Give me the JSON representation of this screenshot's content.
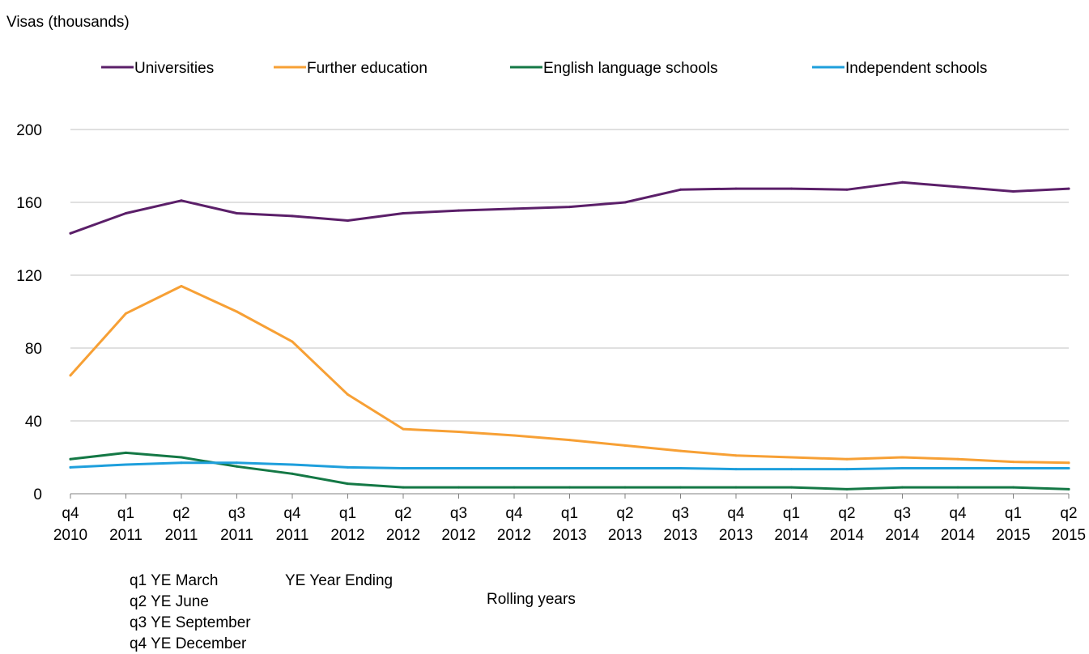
{
  "chart_data": {
    "type": "line",
    "ylabel": "Visas (thousands)",
    "xlabel": "Rolling years",
    "ylim": [
      0,
      200
    ],
    "yticks": [
      0,
      40,
      80,
      120,
      160,
      200
    ],
    "grid": true,
    "legend_position": "top",
    "categories": [
      [
        "q4",
        "2010"
      ],
      [
        "q1",
        "2011"
      ],
      [
        "q2",
        "2011"
      ],
      [
        "q3",
        "2011"
      ],
      [
        "q4",
        "2011"
      ],
      [
        "q1",
        "2012"
      ],
      [
        "q2",
        "2012"
      ],
      [
        "q3",
        "2012"
      ],
      [
        "q4",
        "2012"
      ],
      [
        "q1",
        "2013"
      ],
      [
        "q2",
        "2013"
      ],
      [
        "q3",
        "2013"
      ],
      [
        "q4",
        "2013"
      ],
      [
        "q1",
        "2014"
      ],
      [
        "q2",
        "2014"
      ],
      [
        "q3",
        "2014"
      ],
      [
        "q4",
        "2014"
      ],
      [
        "q1",
        "2015"
      ],
      [
        "q2",
        "2015"
      ]
    ],
    "series": [
      {
        "name": "Universities",
        "color": "#5b1f69",
        "values": [
          143,
          154,
          161,
          154,
          152.5,
          150,
          154,
          155.5,
          156.5,
          157.5,
          160,
          167,
          167.5,
          167.5,
          167,
          171,
          168.5,
          166,
          167.5
        ]
      },
      {
        "name": "Further  education",
        "color": "#f7a035",
        "values": [
          65,
          99,
          114,
          100,
          83.5,
          54.5,
          35.5,
          34,
          32,
          29.5,
          26.5,
          23.5,
          21,
          20,
          19,
          20,
          19,
          17.5,
          17
        ]
      },
      {
        "name": "English language schools",
        "color": "#147845",
        "values": [
          19,
          22.5,
          20,
          15,
          11,
          5.5,
          3.5,
          3.5,
          3.5,
          3.5,
          3.5,
          3.5,
          3.5,
          3.5,
          2.5,
          3.5,
          3.5,
          3.5,
          2.5
        ]
      },
      {
        "name": "Independent schools",
        "color": "#1e9fdc",
        "values": [
          14.5,
          16,
          17,
          17,
          16,
          14.5,
          14,
          14,
          14,
          14,
          14,
          14,
          13.5,
          13.5,
          13.5,
          14,
          14,
          14,
          14
        ]
      }
    ]
  },
  "notes": {
    "quarter_key": [
      "q1 YE March",
      "q2 YE June",
      "q3 YE September",
      "q4 YE December"
    ],
    "abbreviation": "YE Year Ending"
  },
  "colors": {
    "grid": "#c0c0c0",
    "axis": "#808080"
  }
}
